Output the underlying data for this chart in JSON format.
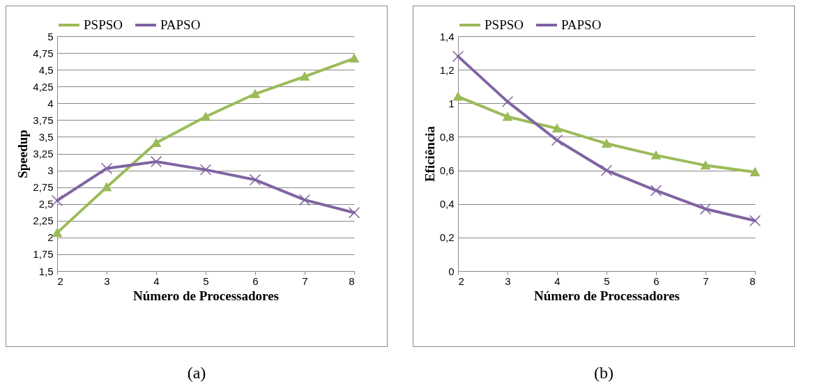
{
  "chart_data": [
    {
      "type": "line",
      "xlabel": "Número de Processadores",
      "ylabel": "Speedup",
      "x": [
        2,
        3,
        4,
        5,
        6,
        7,
        8
      ],
      "xlim": [
        2,
        8
      ],
      "xticks": [
        2,
        3,
        4,
        5,
        6,
        7,
        8
      ],
      "ylim": [
        1.5,
        5
      ],
      "yticks": [
        {
          "value": 1.5,
          "label": "1,5"
        },
        {
          "value": 1.75,
          "label": "1,75"
        },
        2,
        {
          "value": 2.25,
          "label": "2,25"
        },
        {
          "value": 2.5,
          "label": "2,5"
        },
        {
          "value": 2.75,
          "label": "2,75"
        },
        3,
        {
          "value": 3.25,
          "label": "3,25"
        },
        {
          "value": 3.5,
          "label": "3,5"
        },
        {
          "value": 3.75,
          "label": "3,75"
        },
        4,
        {
          "value": 4.25,
          "label": "4,25"
        },
        {
          "value": 4.5,
          "label": "4,5"
        },
        {
          "value": 4.75,
          "label": "4,75"
        },
        5
      ],
      "grid": "y",
      "legend": "top",
      "line_style": "solid",
      "annotations": [
        "(a)"
      ],
      "series": [
        {
          "name": "PSPSO",
          "color": "#9bbb59",
          "marker": "triangle",
          "values": [
            2.07,
            2.75,
            3.41,
            3.8,
            4.14,
            4.4,
            4.67
          ]
        },
        {
          "name": "PAPSO",
          "color": "#8064a2",
          "marker": "cross",
          "values": [
            2.55,
            3.03,
            3.13,
            3.01,
            2.86,
            2.56,
            2.37
          ]
        }
      ]
    },
    {
      "type": "line",
      "xlabel": "Número de Processadores",
      "ylabel": "Eficiência",
      "x": [
        2,
        3,
        4,
        5,
        6,
        7,
        8
      ],
      "xlim": [
        2,
        8
      ],
      "xticks": [
        2,
        3,
        4,
        5,
        6,
        7,
        8
      ],
      "ylim": [
        0,
        1.4
      ],
      "yticks": [
        0,
        {
          "value": 0.2,
          "label": "0,2"
        },
        {
          "value": 0.4,
          "label": "0,4"
        },
        {
          "value": 0.6,
          "label": "0,6"
        },
        {
          "value": 0.8,
          "label": "0,8"
        },
        1,
        {
          "value": 1.2,
          "label": "1,2"
        },
        {
          "value": 1.4,
          "label": "1,4"
        }
      ],
      "grid": "y",
      "legend": "top",
      "line_style": "solid",
      "annotations": [
        "(b)"
      ],
      "series": [
        {
          "name": "PSPSO",
          "color": "#9bbb59",
          "marker": "triangle",
          "values": [
            1.04,
            0.92,
            0.85,
            0.76,
            0.69,
            0.63,
            0.59
          ]
        },
        {
          "name": "PAPSO",
          "color": "#8064a2",
          "marker": "cross",
          "values": [
            1.28,
            1.01,
            0.78,
            0.6,
            0.48,
            0.37,
            0.3
          ]
        }
      ]
    }
  ]
}
